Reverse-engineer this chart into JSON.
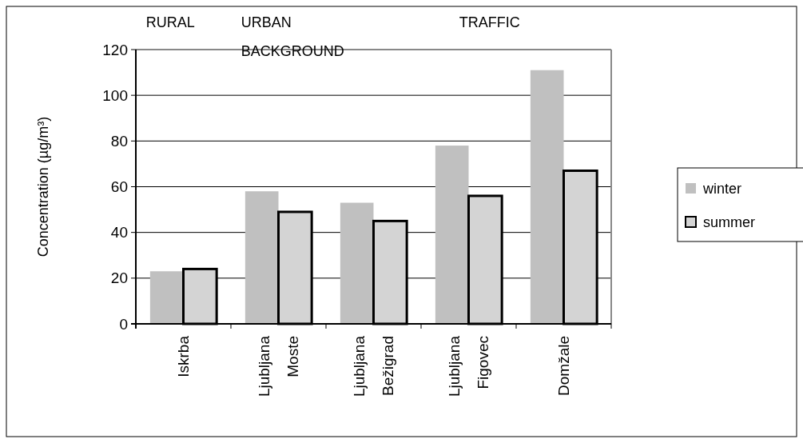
{
  "chart_data": {
    "type": "bar",
    "ylabel": "Concentration (µg/m³)",
    "categories": [
      "Iskrba",
      "Ljubljana\nMoste",
      "Ljubljana\nBežigrad",
      "Ljubljana\nFigovec",
      "Domžale"
    ],
    "series": [
      {
        "name": "winter",
        "color": "#c0c0c0",
        "values": [
          23,
          58,
          53,
          78,
          111
        ]
      },
      {
        "name": "summer",
        "color": "#d4d4d4",
        "values": [
          24,
          49,
          45,
          56,
          67
        ]
      }
    ],
    "ylim": [
      0,
      120
    ],
    "yticks": [
      0,
      20,
      40,
      60,
      80,
      100,
      120
    ],
    "grid": "y",
    "legend": "right",
    "annotations": [
      "RURAL",
      "URBAN\nBACKGROUND",
      "TRAFFIC"
    ]
  }
}
